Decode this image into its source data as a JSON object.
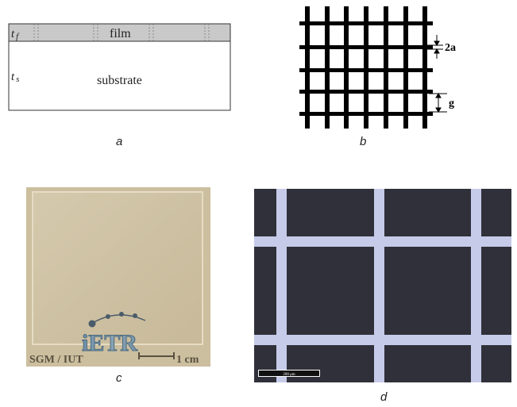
{
  "panel_a": {
    "film_thickness": "t",
    "film_thickness_sub": "f",
    "film_label": "film",
    "substrate_thickness": "t",
    "substrate_thickness_sub": "s",
    "substrate_label": "substrate",
    "caption": "a"
  },
  "panel_b": {
    "width_label": "2a",
    "gap_label": "g",
    "caption": "b"
  },
  "panel_c": {
    "sample_logo": "iETR",
    "credit": "SGM / IUT",
    "scale_bar_label": "1 cm",
    "caption": "c"
  },
  "panel_d": {
    "scale_bar_label": "200 μm",
    "caption": "d"
  },
  "colors": {
    "film": "#c9c9c9",
    "mesh": "#000000",
    "sample_bg": "#cfc2a5",
    "micro_bg": "#30303a",
    "micro_metal": "#c6cbe9"
  }
}
